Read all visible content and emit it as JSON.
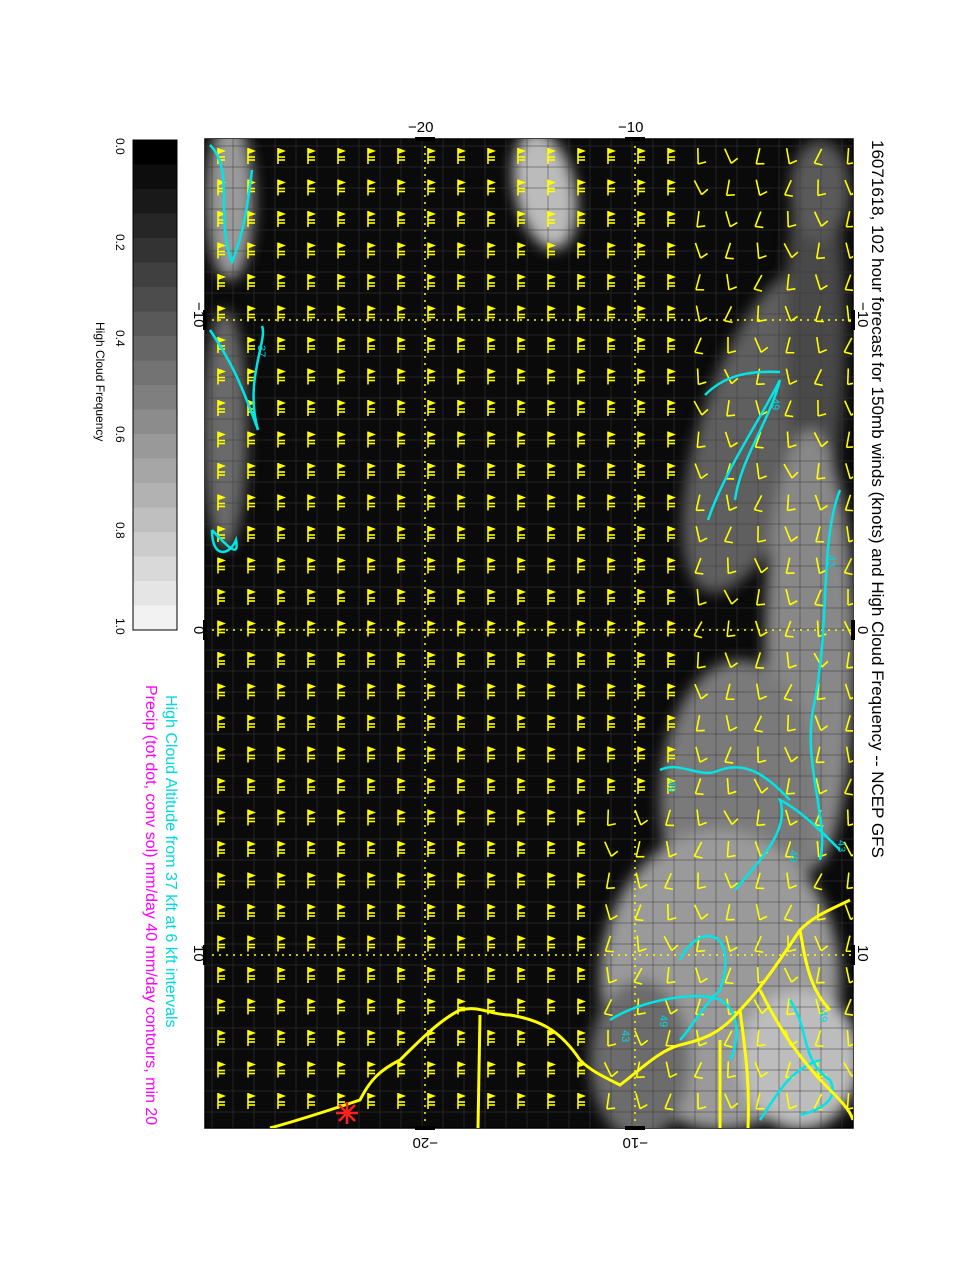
{
  "title": "16071618, 102 hour forecast for 150mb winds (knots) and High Cloud Frequency -- NCEP GFS",
  "colorbar": {
    "label": "High Cloud Frequency",
    "ticks": [
      "0.0",
      "0.2",
      "0.4",
      "0.6",
      "0.8",
      "1.0"
    ]
  },
  "axes": {
    "top_ticks": [
      "−20",
      "−10"
    ],
    "bottom_ticks": [
      "−20",
      "−10"
    ],
    "left_ticks": [
      "−10",
      "0",
      "10"
    ],
    "right_ticks": [
      "−10",
      "0",
      "10"
    ]
  },
  "legend": {
    "cyan_note": "High Cloud Altitude from 37 kft at 6 kft intervals",
    "magenta_note": "Precip (tot dot, conv sol) mm/day 40 mm/day contours, min 20"
  },
  "contour_labels": [
    "37",
    "49",
    "43",
    "49",
    "49",
    "43",
    "49",
    "43",
    "49"
  ],
  "colors": {
    "background": "#ffffff",
    "map_fill": "#0a0a0a",
    "wind_barbs": "#ffff00",
    "coastline": "#ffff00",
    "cloud_altitude_contours": "#00e5e5",
    "precip_note": "#ff00ff",
    "marker": "#ff2020"
  },
  "marker_icon": "red-asterisk-icon"
}
